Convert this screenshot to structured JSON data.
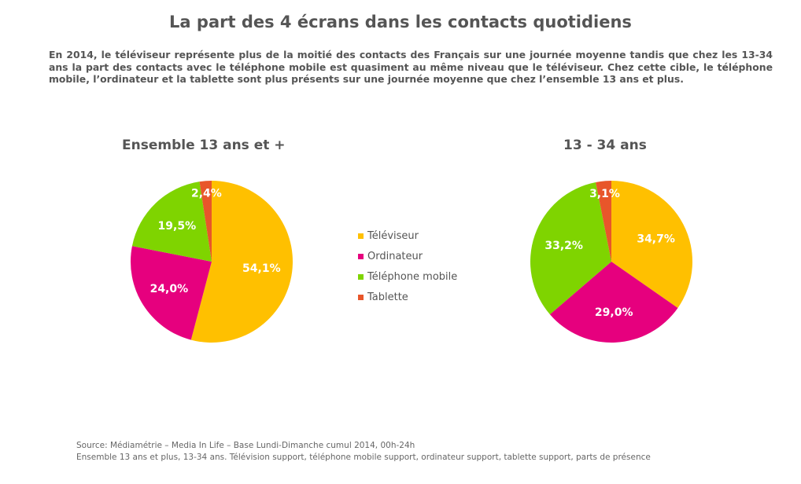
{
  "title": "La part des 4 écrans dans les contacts quotidiens",
  "intro": "En 2014, le téléviseur représente plus de la moitié des contacts des Français sur une journée moyenne tandis que chez les 13-34 ans la part des contacts avec le téléphone mobile est quasiment au même niveau que le téléviseur. Chez cette cible, le téléphone mobile, l’ordinateur et la tablette sont plus présents sur une journée moyenne que chez l’ensemble 13 ans et plus.",
  "chart_data": [
    {
      "type": "pie",
      "title": "Ensemble 13 ans et +",
      "categories": [
        "Téléviseur",
        "Ordinateur",
        "Téléphone mobile",
        "Tablette"
      ],
      "values": [
        54.1,
        24.0,
        19.5,
        2.4
      ],
      "labels": [
        "54,1%",
        "24,0%",
        "19,5%",
        "2,4%"
      ],
      "legend": "center"
    },
    {
      "type": "pie",
      "title": "13 - 34 ans",
      "categories": [
        "Téléviseur",
        "Ordinateur",
        "Téléphone mobile",
        "Tablette"
      ],
      "values": [
        34.7,
        29.0,
        33.2,
        3.1
      ],
      "labels": [
        "34,7%",
        "29,0%",
        "33,2%",
        "3,1%"
      ],
      "legend": "center"
    }
  ],
  "legend": [
    {
      "label": "Téléviseur",
      "color": "#FFC000"
    },
    {
      "label": "Ordinateur",
      "color": "#E6007E"
    },
    {
      "label": "Téléphone mobile",
      "color": "#7FD400"
    },
    {
      "label": "Tablette",
      "color": "#E8562A"
    }
  ],
  "source": {
    "line1": "Source: Médiamétrie – Media In Life – Base Lundi-Dimanche cumul 2014, 00h-24h",
    "line2": "Ensemble 13 ans et plus, 13-34 ans. Télévision support, téléphone mobile support, ordinateur support, tablette support, parts de présence"
  }
}
